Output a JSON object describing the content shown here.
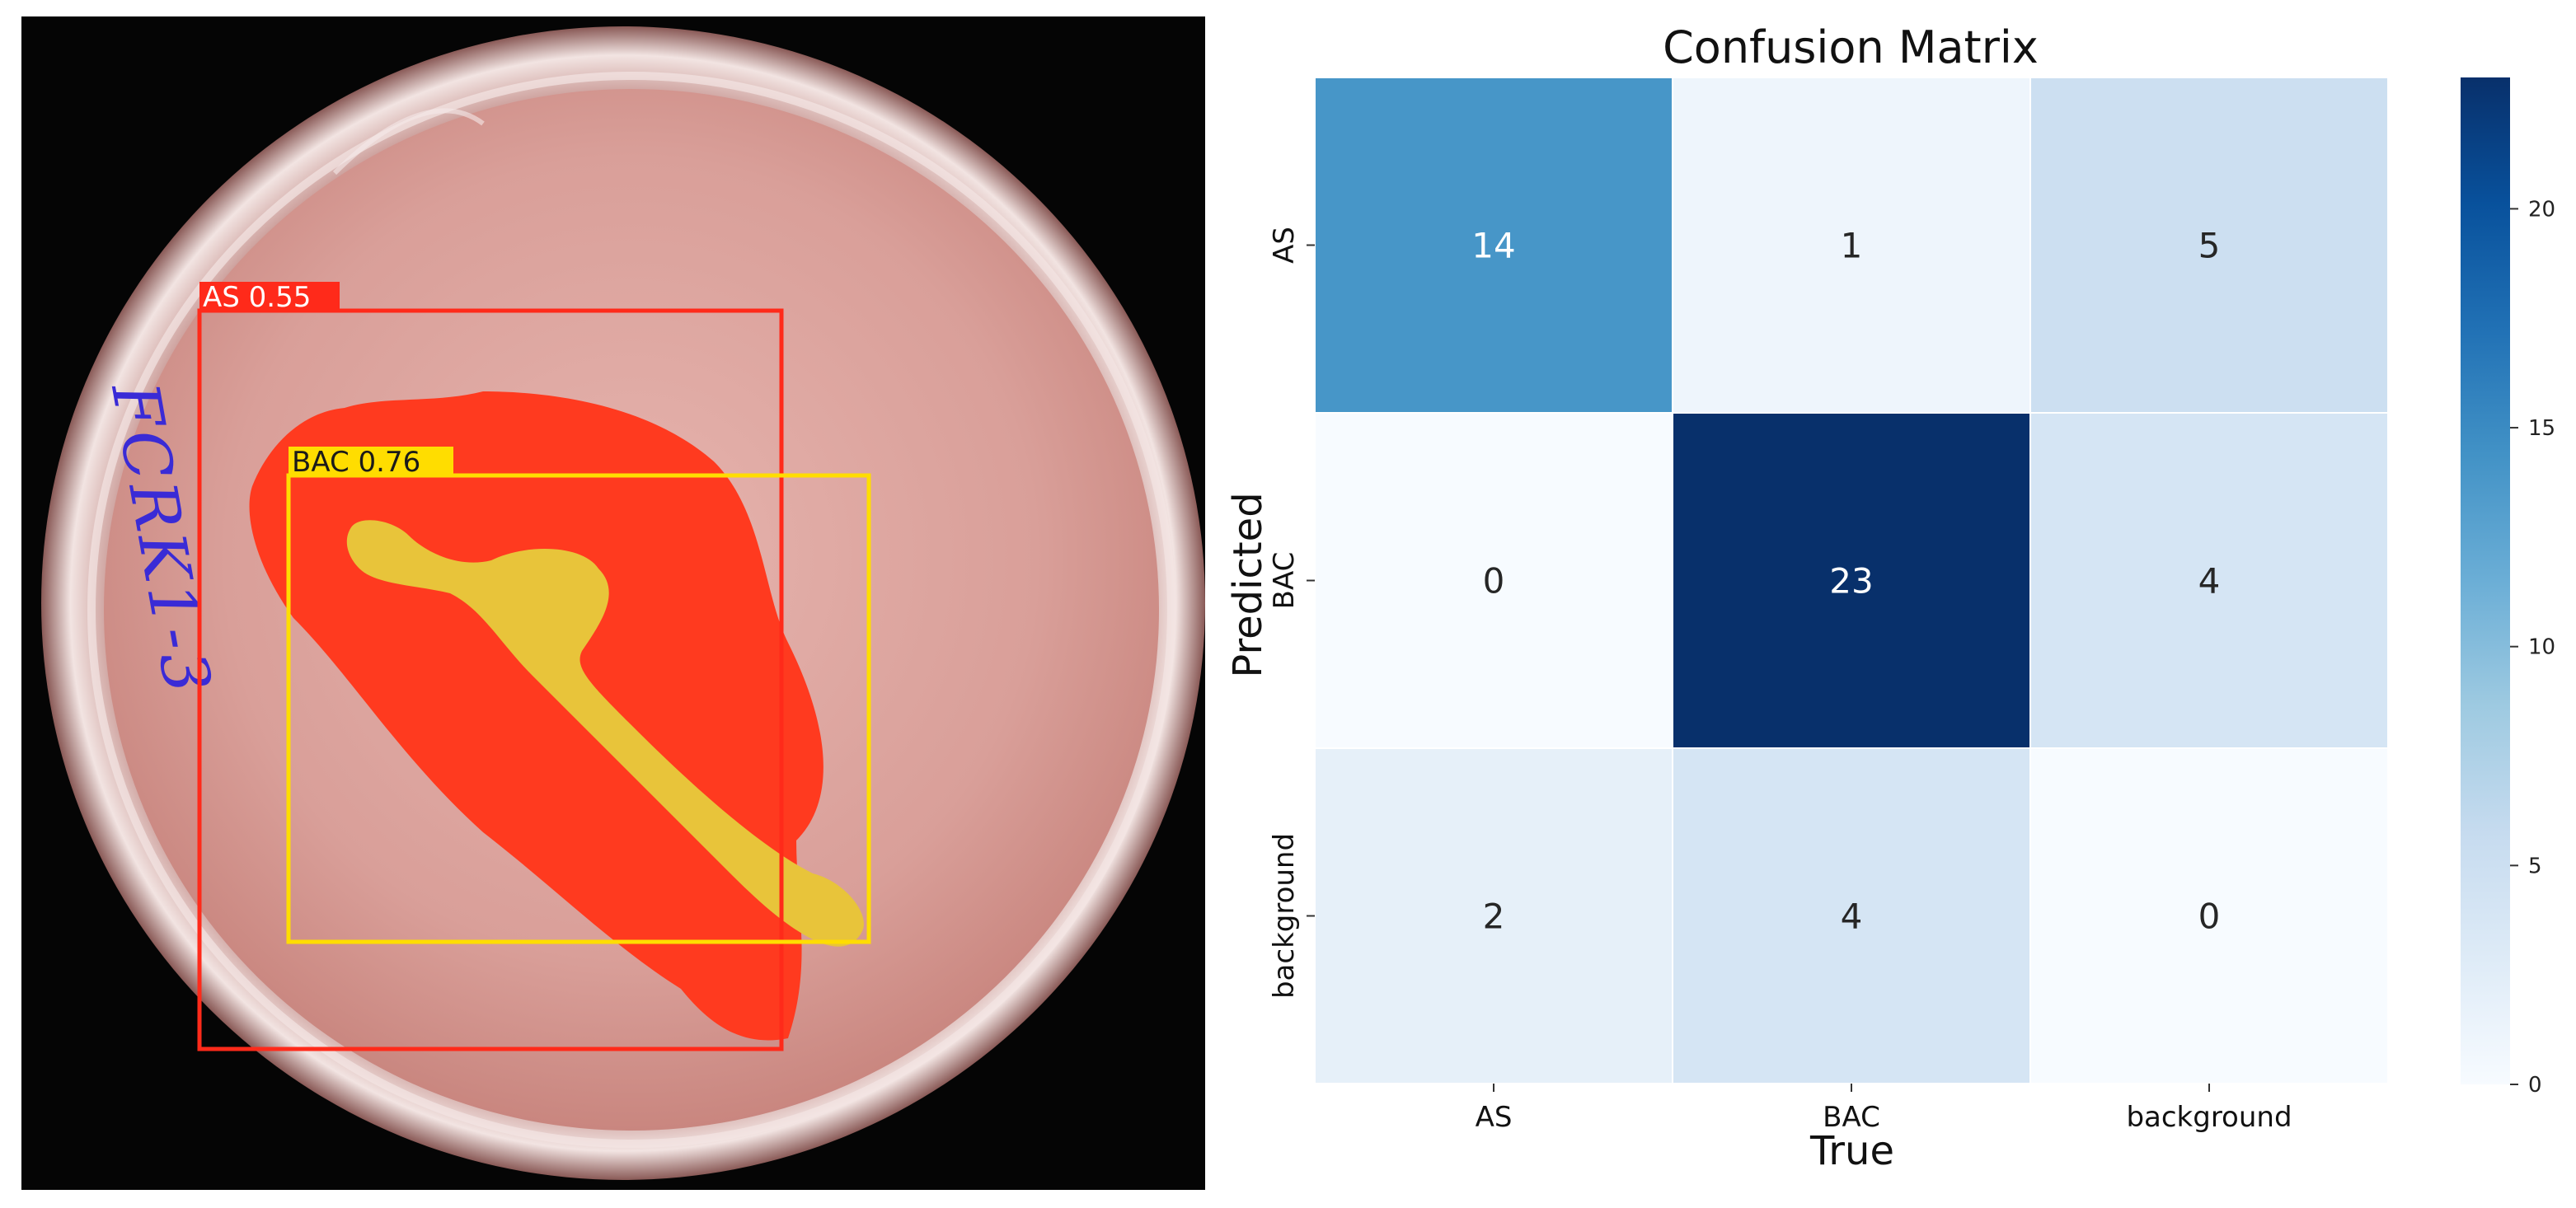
{
  "detections": [
    {
      "label": "AS 0.55",
      "color": "#ff2a1a",
      "mask_color": "#ff3a1f"
    },
    {
      "label": "BAC 0.76",
      "color": "#ffdd00",
      "mask_color": "#e8c43a"
    }
  ],
  "dish_handwriting": "FCRK1-3",
  "chart_data": {
    "type": "heatmap",
    "title": "Confusion Matrix",
    "xlabel": "True",
    "ylabel": "Predicted",
    "x_categories": [
      "AS",
      "BAC",
      "background"
    ],
    "y_categories": [
      "AS",
      "BAC",
      "background"
    ],
    "values": [
      [
        14,
        1,
        5
      ],
      [
        0,
        23,
        4
      ],
      [
        2,
        4,
        0
      ]
    ],
    "colorbar": {
      "min": 0,
      "max": 23,
      "ticks": [
        0,
        5,
        10,
        15,
        20
      ]
    },
    "colormap": "Blues",
    "colors": {
      "low": "#f7fbff",
      "high": "#08306b"
    },
    "grid": false
  }
}
